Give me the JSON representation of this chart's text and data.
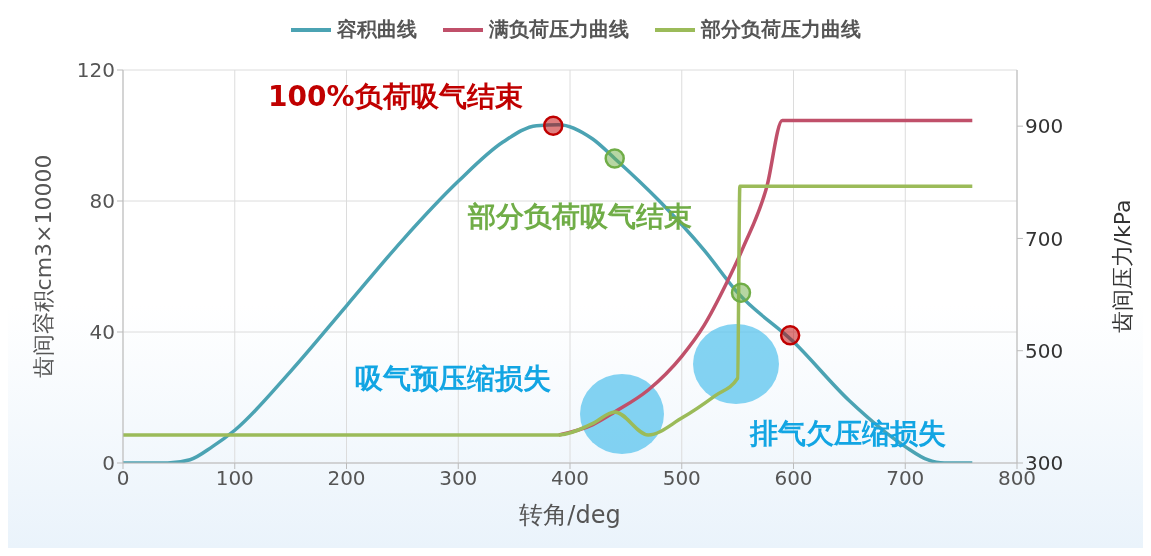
{
  "chart_data": {
    "type": "line",
    "xlabel": "转角/deg",
    "ylabel": "齿间容积cm3×10000",
    "y2label": "齿间压力/kPa",
    "xlim": [
      0,
      800
    ],
    "xticks": [
      0,
      100,
      200,
      300,
      400,
      500,
      600,
      700,
      800
    ],
    "ylim": [
      0,
      120
    ],
    "yticks": [
      0,
      40,
      80,
      120
    ],
    "y2lim": [
      300,
      1000
    ],
    "y2ticks": [
      300,
      500,
      700,
      900
    ],
    "grid": true,
    "legend": "top",
    "line_style": "solid",
    "series": [
      {
        "name": "容积曲线",
        "color": "#4ba3b3",
        "x": [
          0,
          40,
          60,
          80,
          100,
          150,
          200,
          250,
          300,
          340,
          370,
          390,
          420,
          440,
          480,
          520,
          550,
          600,
          650,
          700,
          720,
          735,
          760
        ],
        "values": [
          0,
          0,
          1,
          5,
          10,
          28,
          48,
          68,
          86,
          98,
          103,
          103.3,
          99,
          93,
          80,
          65,
          52,
          37,
          19,
          5,
          1,
          0,
          0
        ]
      },
      {
        "name": "满负荷压力曲线",
        "color": "#c0506a",
        "axis": "y2",
        "x": [
          390,
          420,
          440,
          470,
          500,
          520,
          540,
          555,
          576,
          590,
          760
        ],
        "values": [
          350,
          368,
          391,
          430,
          490,
          545,
          620,
          684,
          791,
          910,
          910
        ]
      },
      {
        "name": "部分负荷压力曲线",
        "color": "#9bbb59",
        "axis": "y2",
        "x": [
          0,
          390,
          420,
          440,
          470,
          500,
          530,
          550,
          552,
          760
        ],
        "values": [
          350,
          350,
          370,
          391,
          350,
          380,
          420,
          451,
          793,
          793
        ]
      },
      {
        "type": "scatter",
        "color": "#c00000",
        "x": [
          385,
          597
        ],
        "values": [
          103,
          39
        ]
      },
      {
        "type": "scatter",
        "color": "#70ad47",
        "x": [
          440,
          553
        ],
        "values": [
          93,
          52
        ]
      }
    ],
    "annotations": [
      "100%负荷吸气结束",
      "部分负荷吸气结束",
      "吸气预压缩损失",
      "排气欠压缩损失"
    ]
  }
}
